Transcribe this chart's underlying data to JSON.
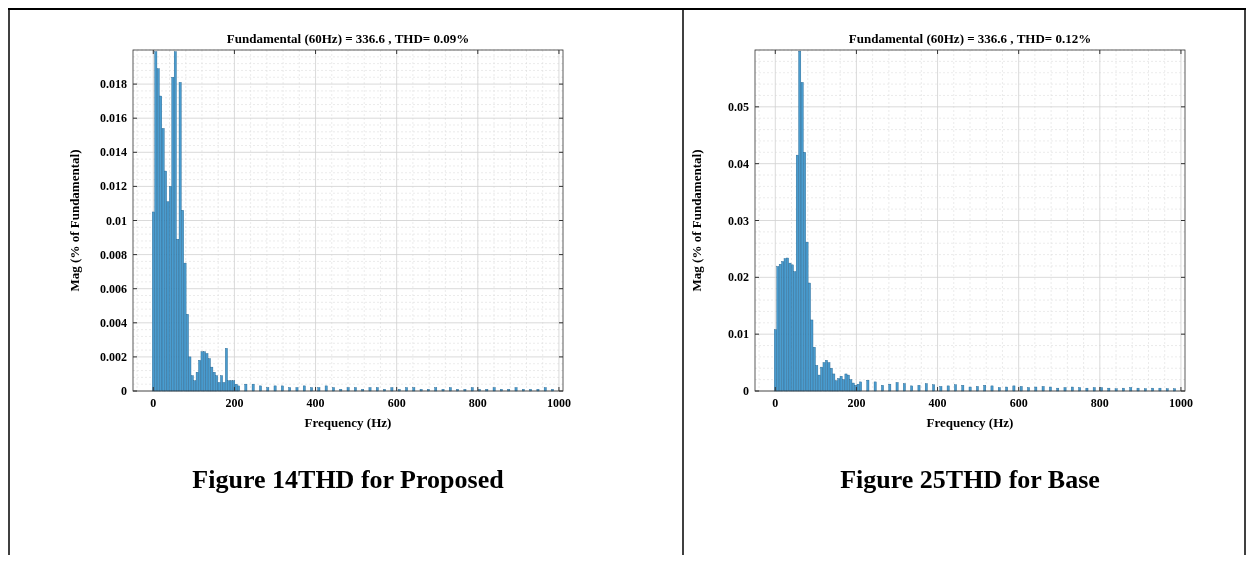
{
  "chart_data": [
    {
      "type": "bar",
      "title": "Fundamental (60Hz) = 336.6 , THD= 0.09%",
      "xlabel": "Frequency (Hz)",
      "ylabel": "Mag (% of Fundamental)",
      "x": [
        0,
        6,
        12,
        18,
        24,
        30,
        36,
        42,
        48,
        54,
        60,
        66,
        72,
        78,
        84,
        90,
        96,
        102,
        108,
        114,
        120,
        126,
        132,
        138,
        144,
        150,
        156,
        162,
        168,
        174,
        180,
        186,
        192,
        198,
        204,
        210,
        228,
        246,
        264,
        282,
        300,
        318,
        336,
        354,
        372,
        390,
        408,
        426,
        444,
        462,
        480,
        498,
        516,
        534,
        552,
        570,
        588,
        606,
        624,
        642,
        660,
        678,
        696,
        714,
        732,
        750,
        768,
        786,
        804,
        822,
        840,
        858,
        876,
        894,
        912,
        930,
        948,
        966,
        984
      ],
      "values": [
        0.0105,
        0.0199,
        0.0189,
        0.0173,
        0.0154,
        0.0129,
        0.0111,
        0.012,
        0.0184,
        0.0199,
        0.0089,
        0.0181,
        0.0106,
        0.0075,
        0.0045,
        0.002,
        0.0009,
        0.0006,
        0.0011,
        0.0018,
        0.0023,
        0.0023,
        0.0022,
        0.0019,
        0.0014,
        0.0011,
        0.0009,
        0.0005,
        0.0009,
        0.0005,
        0.0025,
        0.0006,
        0.0006,
        0.0006,
        0.0004,
        0.0003,
        0.0004,
        0.0004,
        0.0003,
        0.0002,
        0.0003,
        0.0003,
        0.0002,
        0.0002,
        0.0003,
        0.0002,
        0.0002,
        0.0003,
        0.0002,
        0.0001,
        0.0002,
        0.0002,
        0.0001,
        0.0002,
        0.0002,
        0.0001,
        0.0002,
        0.0001,
        0.0002,
        0.0002,
        0.0001,
        0.0001,
        0.0002,
        0.0001,
        0.0002,
        0.0001,
        0.0001,
        0.0002,
        0.0001,
        0.0001,
        0.0002,
        0.0001,
        0.0001,
        0.0002,
        0.0001,
        0.0001,
        0.0001,
        0.0002,
        0.0001
      ],
      "color": "#4a9ccf",
      "xlim": [
        -50,
        1010
      ],
      "xticks": [
        0,
        200,
        400,
        600,
        800,
        1000
      ],
      "ylim": [
        0,
        0.02
      ],
      "yticks": [
        0,
        0.002,
        0.004,
        0.006,
        0.008,
        0.01,
        0.012,
        0.014,
        0.016,
        0.018
      ],
      "grid": true,
      "annotations": [
        "Figure 14THD for Proposed"
      ]
    },
    {
      "type": "bar",
      "title": "Fundamental (60Hz) = 336.6 , THD= 0.12%",
      "xlabel": "Frequency (Hz)",
      "ylabel": "Mag (% of Fundamental)",
      "x": [
        0,
        6,
        12,
        18,
        24,
        30,
        36,
        42,
        48,
        54,
        60,
        66,
        72,
        78,
        84,
        90,
        96,
        102,
        108,
        114,
        120,
        126,
        132,
        138,
        144,
        150,
        156,
        162,
        168,
        174,
        180,
        186,
        192,
        198,
        204,
        210,
        228,
        246,
        264,
        282,
        300,
        318,
        336,
        354,
        372,
        390,
        408,
        426,
        444,
        462,
        480,
        498,
        516,
        534,
        552,
        570,
        588,
        606,
        624,
        642,
        660,
        678,
        696,
        714,
        732,
        750,
        768,
        786,
        804,
        822,
        840,
        858,
        876,
        894,
        912,
        930,
        948,
        966,
        984
      ],
      "values": [
        0.0108,
        0.0219,
        0.0223,
        0.0228,
        0.0233,
        0.0234,
        0.0225,
        0.0222,
        0.021,
        0.0415,
        0.0598,
        0.0543,
        0.042,
        0.0262,
        0.019,
        0.0125,
        0.0077,
        0.0045,
        0.0028,
        0.0042,
        0.005,
        0.0054,
        0.005,
        0.004,
        0.003,
        0.0018,
        0.0022,
        0.0026,
        0.002,
        0.003,
        0.0028,
        0.002,
        0.0014,
        0.001,
        0.0012,
        0.0016,
        0.0019,
        0.0016,
        0.001,
        0.0012,
        0.0015,
        0.0013,
        0.0009,
        0.001,
        0.0013,
        0.0011,
        0.0008,
        0.0009,
        0.0011,
        0.001,
        0.0007,
        0.0008,
        0.001,
        0.0009,
        0.0006,
        0.0007,
        0.0009,
        0.0008,
        0.0006,
        0.0007,
        0.0008,
        0.0007,
        0.0005,
        0.0006,
        0.0007,
        0.0006,
        0.0005,
        0.0006,
        0.0006,
        0.0005,
        0.0004,
        0.0005,
        0.0006,
        0.0005,
        0.0004,
        0.0005,
        0.0005,
        0.0004,
        0.0004
      ],
      "color": "#4a9ccf",
      "xlim": [
        -50,
        1010
      ],
      "xticks": [
        0,
        200,
        400,
        600,
        800,
        1000
      ],
      "ylim": [
        0,
        0.06
      ],
      "yticks": [
        0,
        0.01,
        0.02,
        0.03,
        0.04,
        0.05
      ],
      "grid": true,
      "annotations": [
        "Figure 25THD for Base"
      ]
    }
  ]
}
